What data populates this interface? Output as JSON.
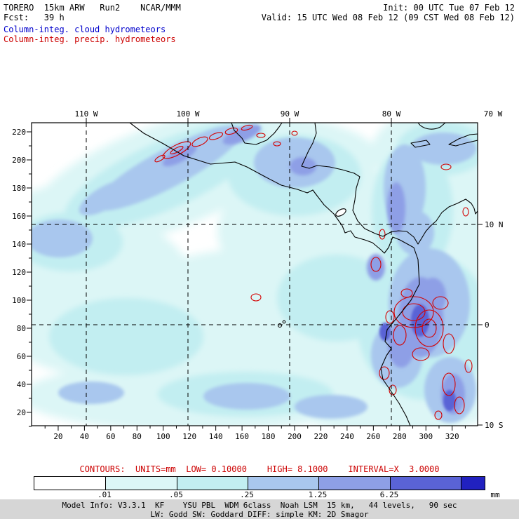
{
  "header": {
    "model_line_left": "TORERO  15km ARW   Run2    NCAR/MMM",
    "init_label": "Init: 00 UTC Tue 07 Feb 12",
    "fcst_label": "Fcst:   39 h",
    "valid_label": "Valid: 15 UTC Wed 08 Feb 12 (09 CST Wed 08 Feb 12)",
    "field_cloud": "Column-integ. cloud hydrometeors",
    "field_precip": "Column-integ. precip. hydrometeors"
  },
  "colors": {
    "cloud_text_blue": "#0000cc",
    "precip_text_red": "#cc0000",
    "footer_band_gray": "#d6d6d6"
  },
  "chart_data": {
    "type": "heatmap",
    "description": "WRF-ARW model output: column-integrated cloud hydrometeors shown as cyan/blue shading (mm) and column-integrated precipitation hydrometeors shown as red contours (mm), over the East Pacific, Mexico, Central America and northern South America",
    "x_axis": {
      "ticks": [
        20,
        40,
        60,
        80,
        100,
        120,
        140,
        160,
        180,
        200,
        220,
        240,
        260,
        280,
        300,
        320
      ],
      "minor_step": 10,
      "top_labels": [
        {
          "lon": 110,
          "text": "110 W"
        },
        {
          "lon": 100,
          "text": "100 W"
        },
        {
          "lon": 90,
          "text": "90 W"
        },
        {
          "lon": 80,
          "text": "80 W"
        },
        {
          "lon": 70,
          "text": "70 W"
        }
      ]
    },
    "y_axis": {
      "ticks": [
        20,
        40,
        60,
        80,
        100,
        120,
        140,
        160,
        180,
        200,
        220
      ],
      "minor_step": 10,
      "right_labels": [
        {
          "lat": 10,
          "text": "10 N"
        },
        {
          "lat": 0,
          "text": "0"
        },
        {
          "lat": -10,
          "text": "10 S"
        }
      ]
    },
    "colorbar": {
      "colors": [
        "#ffffff",
        "#dcf6f6",
        "#c2eef1",
        "#a9c7ee",
        "#8e9fe6",
        "#5a63d6",
        "#2121c0"
      ],
      "labels": [
        ".01",
        ".05",
        ".25",
        "1.25",
        "6.25"
      ],
      "units_label": "mm"
    },
    "contours": {
      "info_line": "CONTOURS:  UNITS=mm  LOW= 0.10000    HIGH= 8.1000    INTERVAL=X  3.0000",
      "units": "mm",
      "low": 0.1,
      "high": 8.1,
      "interval": "X 3.0000"
    },
    "features": [
      {
        "area": "SW Mexico offshore diagonal band",
        "value": "0.25-1.25 mm shading with small red precip contours along the coast"
      },
      {
        "area": "Yucatan / Belize / Honduras",
        "value": "0.25-1.25 mm shading patch"
      },
      {
        "area": "80W band Caribbean to Panama",
        "value": "0.25-1.25 mm shading"
      },
      {
        "area": "Colombia / Ecuador Andes",
        "value": "1.25 to >6.25 mm shading with dense cluster of red precip contours"
      },
      {
        "area": "Peru Andes (bottom right)",
        "value": "1.25-6.25 mm shading with red precip contours"
      },
      {
        "area": "broad East Pacific",
        "value": "0.01-0.25 mm light cyan shading"
      }
    ]
  },
  "footer": {
    "line1": "Model Info: V3.3.1  KF    YSU PBL  WDM 6class  Noah LSM  15 km,   44 levels,   90 sec",
    "line2": "LW: Godd SW: Goddard DIFF: simple KM: 2D Smagor"
  }
}
